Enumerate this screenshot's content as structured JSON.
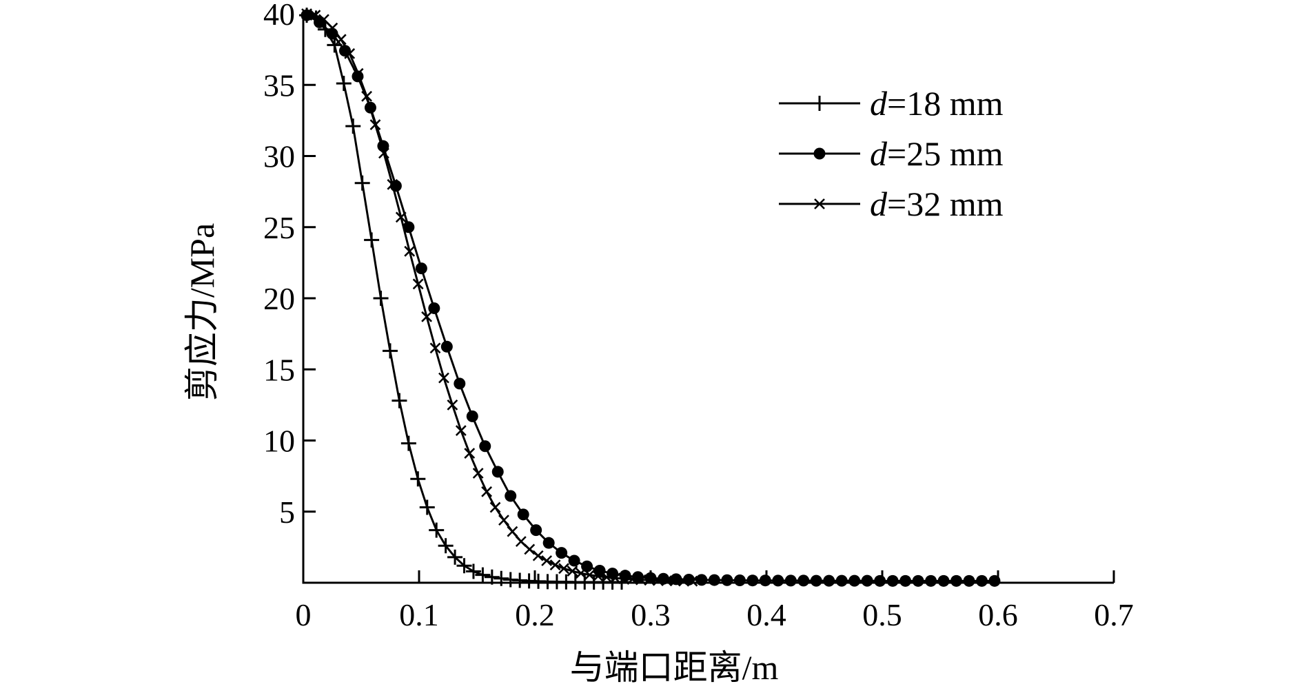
{
  "chart_data": {
    "type": "line",
    "title": "",
    "xlabel": "与端口距离/m",
    "ylabel": "剪应力/MPa",
    "xlim": [
      0,
      0.7
    ],
    "ylim": [
      0,
      40
    ],
    "x_ticks": [
      "0",
      "0.1",
      "0.2",
      "0.3",
      "0.4",
      "0.5",
      "0.6",
      "0.7"
    ],
    "y_ticks": [
      "5",
      "10",
      "15",
      "20",
      "25",
      "30",
      "35",
      "40"
    ],
    "grid": false,
    "legend_position": "top-right",
    "series": [
      {
        "name": "d=18 mm",
        "legend_italic": "d",
        "legend_rest": "=18 mm",
        "marker": "plus",
        "color": "#000000",
        "x": [
          0.003,
          0.011,
          0.019,
          0.027,
          0.035,
          0.043,
          0.051,
          0.059,
          0.067,
          0.075,
          0.083,
          0.091,
          0.099,
          0.107,
          0.115,
          0.123,
          0.131,
          0.139,
          0.147,
          0.155,
          0.163,
          0.171,
          0.179,
          0.187,
          0.195,
          0.203,
          0.211,
          0.219,
          0.227,
          0.235,
          0.243,
          0.251,
          0.259,
          0.267,
          0.275
        ],
        "y": [
          39.9,
          39.7,
          38.9,
          37.8,
          35.1,
          32.1,
          28.1,
          24.1,
          20.0,
          16.3,
          12.8,
          9.8,
          7.3,
          5.3,
          3.7,
          2.6,
          1.8,
          1.2,
          0.8,
          0.55,
          0.4,
          0.3,
          0.22,
          0.17,
          0.13,
          0.1,
          0.08,
          0.07,
          0.06,
          0.05,
          0.05,
          0.04,
          0.04,
          0.04,
          0.04
        ]
      },
      {
        "name": "d=25 mm",
        "legend_italic": "d",
        "legend_rest": "=25 mm",
        "marker": "dot",
        "color": "#000000",
        "x": [
          0.003,
          0.014,
          0.025,
          0.036,
          0.047,
          0.058,
          0.069,
          0.08,
          0.091,
          0.102,
          0.113,
          0.124,
          0.135,
          0.146,
          0.157,
          0.168,
          0.179,
          0.19,
          0.201,
          0.212,
          0.223,
          0.234,
          0.245,
          0.256,
          0.267,
          0.278,
          0.289,
          0.3,
          0.311,
          0.322,
          0.333,
          0.344,
          0.355,
          0.366,
          0.377,
          0.388,
          0.399,
          0.41,
          0.421,
          0.432,
          0.443,
          0.454,
          0.465,
          0.476,
          0.487,
          0.498,
          0.509,
          0.52,
          0.531,
          0.542,
          0.553,
          0.564,
          0.575,
          0.586,
          0.597
        ],
        "y": [
          39.9,
          39.4,
          38.6,
          37.4,
          35.6,
          33.4,
          30.7,
          27.9,
          25.0,
          22.1,
          19.3,
          16.6,
          14.0,
          11.7,
          9.6,
          7.8,
          6.1,
          4.8,
          3.7,
          2.8,
          2.1,
          1.55,
          1.15,
          0.85,
          0.65,
          0.5,
          0.4,
          0.33,
          0.28,
          0.25,
          0.22,
          0.2,
          0.19,
          0.18,
          0.17,
          0.16,
          0.16,
          0.15,
          0.15,
          0.15,
          0.14,
          0.14,
          0.14,
          0.14,
          0.14,
          0.13,
          0.13,
          0.13,
          0.13,
          0.13,
          0.13,
          0.13,
          0.13,
          0.13,
          0.13
        ]
      },
      {
        "name": "d=32 mm",
        "legend_italic": "d",
        "legend_rest": "=32 mm",
        "marker": "cross",
        "color": "#000000",
        "x": [
          0.003,
          0.0104,
          0.0178,
          0.0252,
          0.0326,
          0.04,
          0.0474,
          0.0548,
          0.0622,
          0.0696,
          0.077,
          0.0844,
          0.0918,
          0.0992,
          0.1066,
          0.114,
          0.1214,
          0.1288,
          0.1362,
          0.1436,
          0.151,
          0.1584,
          0.1658,
          0.1732,
          0.1806,
          0.188,
          0.1954,
          0.2028,
          0.2102,
          0.2176,
          0.225,
          0.2324,
          0.2398,
          0.2472,
          0.2546,
          0.262,
          0.2694,
          0.2768,
          0.2842,
          0.2916,
          0.299,
          0.3064,
          0.3138,
          0.3212,
          0.3286,
          0.336
        ],
        "y": [
          40.0,
          39.9,
          39.6,
          39.0,
          38.2,
          37.2,
          35.8,
          34.2,
          32.2,
          30.2,
          28.0,
          25.7,
          23.3,
          21.0,
          18.7,
          16.5,
          14.4,
          12.5,
          10.7,
          9.1,
          7.7,
          6.4,
          5.3,
          4.4,
          3.6,
          2.9,
          2.35,
          1.9,
          1.55,
          1.25,
          1.0,
          0.82,
          0.67,
          0.55,
          0.46,
          0.39,
          0.33,
          0.28,
          0.24,
          0.21,
          0.18,
          0.16,
          0.14,
          0.13,
          0.12,
          0.11
        ]
      }
    ]
  }
}
